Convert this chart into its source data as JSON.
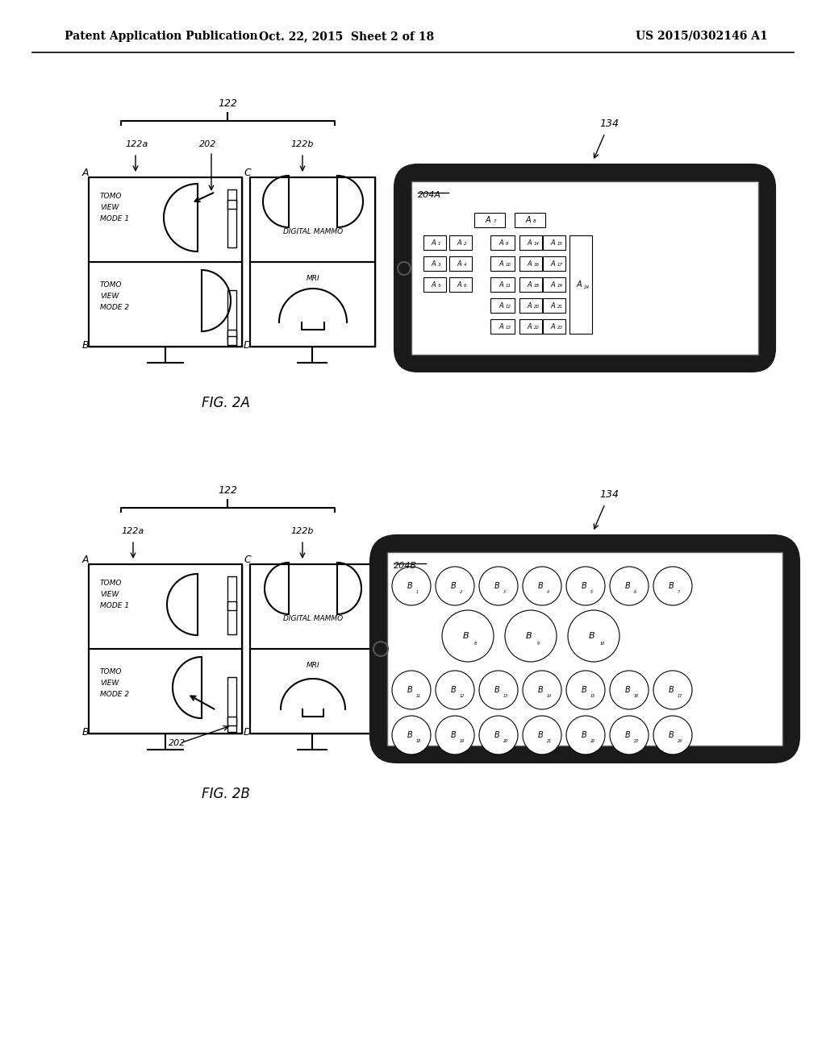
{
  "header_left": "Patent Application Publication",
  "header_mid": "Oct. 22, 2015  Sheet 2 of 18",
  "header_right": "US 2015/0302146 A1",
  "fig_label_a": "FIG. 2A",
  "fig_label_b": "FIG. 2B",
  "bg_color": "#ffffff",
  "line_color": "#000000"
}
